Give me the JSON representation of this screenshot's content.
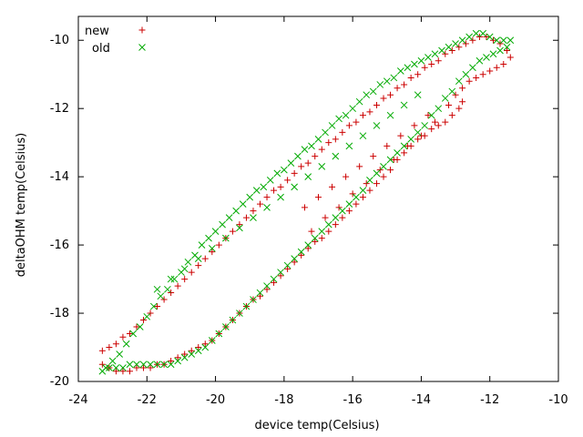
{
  "chart_data": {
    "type": "scatter",
    "title": "",
    "xlabel": "device temp(Celsius)",
    "ylabel": "deltaOHM temp(Celsius)",
    "xlim": [
      -24,
      -10
    ],
    "ylim": [
      -20,
      -9.3
    ],
    "x_ticks": [
      "-24",
      "-22",
      "-20",
      "-18",
      "-16",
      "-14",
      "-12",
      "-10"
    ],
    "y_ticks": [
      "-10",
      "-12",
      "-14",
      "-16",
      "-18",
      "-20"
    ],
    "x_tick_values": [
      -24,
      -22,
      -20,
      -18,
      -16,
      -14,
      -12,
      -10
    ],
    "y_tick_values": [
      -10,
      -12,
      -14,
      -16,
      -18,
      -20
    ],
    "grid": false,
    "legend_position": "top-left",
    "series": [
      {
        "name": "new",
        "color": "#cc0000",
        "marker": "plus",
        "x": [
          -23.3,
          -23.1,
          -22.9,
          -22.7,
          -22.5,
          -22.3,
          -22.1,
          -21.9,
          -21.7,
          -21.5,
          -21.3,
          -21.1,
          -20.9,
          -20.7,
          -20.5,
          -20.3,
          -20.1,
          -19.9,
          -19.7,
          -19.5,
          -19.3,
          -19.1,
          -18.9,
          -18.7,
          -18.5,
          -18.3,
          -18.1,
          -17.9,
          -17.7,
          -17.5,
          -17.3,
          -17.1,
          -16.9,
          -16.7,
          -16.5,
          -16.3,
          -16.1,
          -15.9,
          -15.7,
          -15.5,
          -15.3,
          -15.1,
          -14.9,
          -14.7,
          -14.5,
          -14.3,
          -14.1,
          -13.9,
          -13.7,
          -13.5,
          -13.3,
          -13.1,
          -12.9,
          -12.7,
          -12.5,
          -12.3,
          -12.1,
          -11.9,
          -11.7,
          -11.5,
          -11.4,
          -11.6,
          -11.8,
          -12.0,
          -12.2,
          -12.4,
          -12.6,
          -12.8,
          -13.0,
          -13.2,
          -12.9,
          -12.8,
          -13.1,
          -13.3,
          -13.5,
          -13.7,
          -13.9,
          -14.1,
          -14.3,
          -14.5,
          -14.7,
          -14.9,
          -15.1,
          -15.3,
          -15.5,
          -15.7,
          -15.9,
          -16.1,
          -16.3,
          -16.5,
          -16.7,
          -16.9,
          -17.1,
          -17.3,
          -17.5,
          -17.7,
          -17.9,
          -18.1,
          -18.3,
          -18.5,
          -18.7,
          -18.9,
          -19.1,
          -19.3,
          -19.5,
          -19.7,
          -19.9,
          -20.1,
          -20.3,
          -20.5,
          -20.7,
          -20.9,
          -21.1,
          -21.3,
          -21.5,
          -21.7,
          -21.9,
          -22.1,
          -22.3,
          -22.5,
          -22.7,
          -22.9,
          -23.1,
          -23.3,
          -17.4,
          -17.0,
          -16.6,
          -16.2,
          -15.8,
          -15.4,
          -15.0,
          -14.6,
          -14.2,
          -13.8,
          -17.2,
          -16.8,
          -16.4,
          -16.0,
          -15.6,
          -15.2,
          -14.8,
          -14.4,
          -14.0,
          -13.6
        ],
        "y": [
          -19.1,
          -19.0,
          -18.9,
          -18.7,
          -18.6,
          -18.4,
          -18.2,
          -18.0,
          -17.8,
          -17.6,
          -17.4,
          -17.2,
          -17.0,
          -16.8,
          -16.6,
          -16.4,
          -16.2,
          -16.0,
          -15.8,
          -15.6,
          -15.4,
          -15.2,
          -15.0,
          -14.8,
          -14.6,
          -14.4,
          -14.3,
          -14.1,
          -13.9,
          -13.7,
          -13.6,
          -13.4,
          -13.2,
          -13.0,
          -12.9,
          -12.7,
          -12.5,
          -12.4,
          -12.2,
          -12.1,
          -11.9,
          -11.7,
          -11.6,
          -11.4,
          -11.3,
          -11.1,
          -11.0,
          -10.8,
          -10.7,
          -10.6,
          -10.4,
          -10.3,
          -10.2,
          -10.1,
          -10.0,
          -9.9,
          -9.9,
          -10.0,
          -10.1,
          -10.3,
          -10.5,
          -10.7,
          -10.8,
          -10.9,
          -11.0,
          -11.1,
          -11.2,
          -11.4,
          -11.6,
          -11.9,
          -12.0,
          -11.8,
          -12.2,
          -12.4,
          -12.5,
          -12.6,
          -12.8,
          -12.9,
          -13.1,
          -13.3,
          -13.5,
          -13.8,
          -14.0,
          -14.2,
          -14.4,
          -14.6,
          -14.8,
          -15.0,
          -15.2,
          -15.4,
          -15.6,
          -15.8,
          -15.9,
          -16.1,
          -16.3,
          -16.5,
          -16.7,
          -16.9,
          -17.1,
          -17.3,
          -17.5,
          -17.6,
          -17.8,
          -18.0,
          -18.2,
          -18.4,
          -18.6,
          -18.8,
          -18.9,
          -19.0,
          -19.1,
          -19.2,
          -19.3,
          -19.4,
          -19.5,
          -19.5,
          -19.6,
          -19.6,
          -19.6,
          -19.7,
          -19.7,
          -19.7,
          -19.6,
          -19.5,
          -14.9,
          -14.6,
          -14.3,
          -14.0,
          -13.7,
          -13.4,
          -13.1,
          -12.8,
          -12.5,
          -12.2,
          -15.6,
          -15.2,
          -14.9,
          -14.5,
          -14.2,
          -13.8,
          -13.5,
          -13.1,
          -12.8,
          -12.4
        ]
      },
      {
        "name": "old",
        "color": "#00aa00",
        "marker": "cross",
        "x": [
          -23.2,
          -23.0,
          -22.8,
          -22.6,
          -22.4,
          -22.2,
          -22.0,
          -21.8,
          -21.6,
          -21.4,
          -21.2,
          -21.0,
          -20.8,
          -20.6,
          -20.4,
          -20.2,
          -20.0,
          -19.8,
          -19.6,
          -19.4,
          -19.2,
          -19.0,
          -18.8,
          -18.6,
          -18.4,
          -18.2,
          -18.0,
          -17.8,
          -17.6,
          -17.4,
          -17.2,
          -17.0,
          -16.8,
          -16.6,
          -16.4,
          -16.2,
          -16.0,
          -15.8,
          -15.6,
          -15.4,
          -15.2,
          -15.0,
          -14.8,
          -14.6,
          -14.4,
          -14.2,
          -14.0,
          -13.8,
          -13.6,
          -13.4,
          -13.2,
          -13.0,
          -12.8,
          -12.6,
          -12.4,
          -12.2,
          -12.0,
          -11.8,
          -11.6,
          -11.4,
          -11.5,
          -11.7,
          -11.9,
          -12.1,
          -12.3,
          -12.5,
          -12.7,
          -12.9,
          -13.1,
          -13.3,
          -13.5,
          -13.7,
          -13.9,
          -14.1,
          -14.3,
          -14.5,
          -14.7,
          -14.9,
          -15.1,
          -15.3,
          -15.5,
          -15.7,
          -15.9,
          -16.1,
          -16.3,
          -16.5,
          -16.7,
          -16.9,
          -17.1,
          -17.3,
          -17.5,
          -17.7,
          -17.9,
          -18.1,
          -18.3,
          -18.5,
          -18.7,
          -18.9,
          -19.1,
          -19.3,
          -19.5,
          -19.7,
          -19.9,
          -20.1,
          -20.3,
          -20.5,
          -20.7,
          -20.9,
          -21.1,
          -21.3,
          -21.5,
          -21.7,
          -21.9,
          -22.1,
          -22.3,
          -22.5,
          -22.7,
          -22.9,
          -23.1,
          -23.3,
          -21.7,
          -21.3,
          -20.9,
          -20.5,
          -20.1,
          -19.7,
          -19.3,
          -18.9,
          -18.5,
          -18.1,
          -17.7,
          -17.3,
          -16.9,
          -16.5,
          -16.1,
          -15.7,
          -15.3,
          -14.9,
          -14.5,
          -14.1
        ],
        "y": [
          -19.6,
          -19.4,
          -19.2,
          -18.9,
          -18.6,
          -18.4,
          -18.1,
          -17.8,
          -17.5,
          -17.3,
          -17.0,
          -16.8,
          -16.5,
          -16.3,
          -16.0,
          -15.8,
          -15.6,
          -15.4,
          -15.2,
          -15.0,
          -14.8,
          -14.6,
          -14.4,
          -14.3,
          -14.1,
          -13.9,
          -13.8,
          -13.6,
          -13.4,
          -13.2,
          -13.1,
          -12.9,
          -12.7,
          -12.5,
          -12.3,
          -12.2,
          -12.0,
          -11.8,
          -11.6,
          -11.5,
          -11.3,
          -11.2,
          -11.1,
          -10.9,
          -10.8,
          -10.7,
          -10.6,
          -10.5,
          -10.4,
          -10.3,
          -10.2,
          -10.1,
          -10.0,
          -9.9,
          -9.8,
          -9.8,
          -9.9,
          -10.0,
          -10.0,
          -10.0,
          -10.2,
          -10.3,
          -10.4,
          -10.5,
          -10.6,
          -10.8,
          -11.0,
          -11.2,
          -11.5,
          -11.7,
          -12.0,
          -12.2,
          -12.5,
          -12.7,
          -12.9,
          -13.1,
          -13.3,
          -13.5,
          -13.7,
          -13.9,
          -14.1,
          -14.4,
          -14.6,
          -14.8,
          -15.0,
          -15.2,
          -15.4,
          -15.6,
          -15.8,
          -16.0,
          -16.2,
          -16.4,
          -16.6,
          -16.8,
          -17.0,
          -17.2,
          -17.4,
          -17.6,
          -17.8,
          -18.0,
          -18.2,
          -18.4,
          -18.6,
          -18.8,
          -19.0,
          -19.1,
          -19.2,
          -19.3,
          -19.4,
          -19.5,
          -19.5,
          -19.5,
          -19.5,
          -19.5,
          -19.5,
          -19.5,
          -19.6,
          -19.6,
          -19.6,
          -19.7,
          -17.3,
          -17.0,
          -16.7,
          -16.4,
          -16.1,
          -15.8,
          -15.5,
          -15.2,
          -14.9,
          -14.6,
          -14.3,
          -14.0,
          -13.7,
          -13.4,
          -13.1,
          -12.8,
          -12.5,
          -12.2,
          -11.9,
          -11.6
        ]
      }
    ]
  }
}
